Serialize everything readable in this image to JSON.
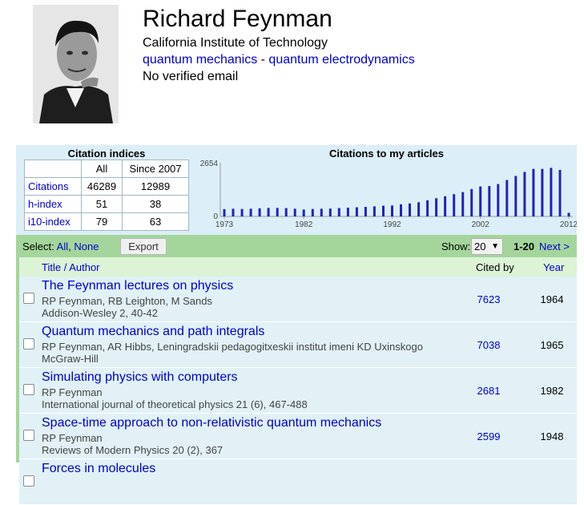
{
  "profile": {
    "name": "Richard Feynman",
    "affiliation": "California Institute of Technology",
    "interests": [
      "quantum mechanics",
      "quantum electrodynamics"
    ],
    "interest_separator": "-",
    "email_status": "No verified email"
  },
  "citation_indices": {
    "title": "Citation indices",
    "headers": [
      "All",
      "Since 2007"
    ],
    "rows": [
      {
        "label": "Citations",
        "all": "46289",
        "since": "12989"
      },
      {
        "label": "h-index",
        "all": "51",
        "since": "38"
      },
      {
        "label": "i10-index",
        "all": "79",
        "since": "63"
      }
    ]
  },
  "chart_data": {
    "type": "bar",
    "title": "Citations to my articles",
    "ylim": [
      0,
      2654
    ],
    "yticks": [
      "2654",
      "0"
    ],
    "xticks": [
      "1973",
      "1982",
      "1992",
      "2002",
      "2012"
    ],
    "x": [
      1973,
      1974,
      1975,
      1976,
      1977,
      1978,
      1979,
      1980,
      1981,
      1982,
      1983,
      1984,
      1985,
      1986,
      1987,
      1988,
      1989,
      1990,
      1991,
      1992,
      1993,
      1994,
      1995,
      1996,
      1997,
      1998,
      1999,
      2000,
      2001,
      2002,
      2003,
      2004,
      2005,
      2006,
      2007,
      2008,
      2009,
      2010,
      2011,
      2012
    ],
    "values": [
      360,
      380,
      370,
      380,
      400,
      420,
      420,
      410,
      380,
      340,
      370,
      380,
      390,
      410,
      430,
      450,
      470,
      500,
      530,
      540,
      600,
      640,
      700,
      800,
      900,
      1000,
      1100,
      1200,
      1350,
      1480,
      1500,
      1600,
      1800,
      2000,
      2200,
      2350,
      2350,
      2400,
      2300,
      180
    ],
    "color": "#2222bb"
  },
  "toolbar": {
    "select_label": "Select:",
    "all_link": "All",
    "none_link": "None",
    "export_label": "Export",
    "show_label": "Show:",
    "show_value": "20",
    "range": "1-20",
    "next_label": "Next >"
  },
  "columns": {
    "title": "Title / Author",
    "cited_by": "Cited by",
    "year": "Year"
  },
  "articles": [
    {
      "title": "The Feynman lectures on physics",
      "authors": "RP Feynman, RB Leighton, M Sands",
      "publication": "Addison-Wesley 2, 40-42",
      "cited_by": "7623",
      "year": "1964"
    },
    {
      "title": "Quantum mechanics and path integrals",
      "authors": "RP Feynman, AR Hibbs, Leningradskii pedagogitxeskii institut imeni KD Uxinskogo",
      "publication": "McGraw-Hill",
      "cited_by": "7038",
      "year": "1965"
    },
    {
      "title": "Simulating physics with computers",
      "authors": "RP Feynman",
      "publication": "International journal of theoretical physics 21 (6), 467-488",
      "cited_by": "2681",
      "year": "1982"
    },
    {
      "title": "Space-time approach to non-relativistic quantum mechanics",
      "authors": "RP Feynman",
      "publication": "Reviews of Modern Physics 20 (2), 367",
      "cited_by": "2599",
      "year": "1948"
    },
    {
      "title": "Forces in molecules",
      "authors": "",
      "publication": "",
      "cited_by": "",
      "year": ""
    }
  ]
}
